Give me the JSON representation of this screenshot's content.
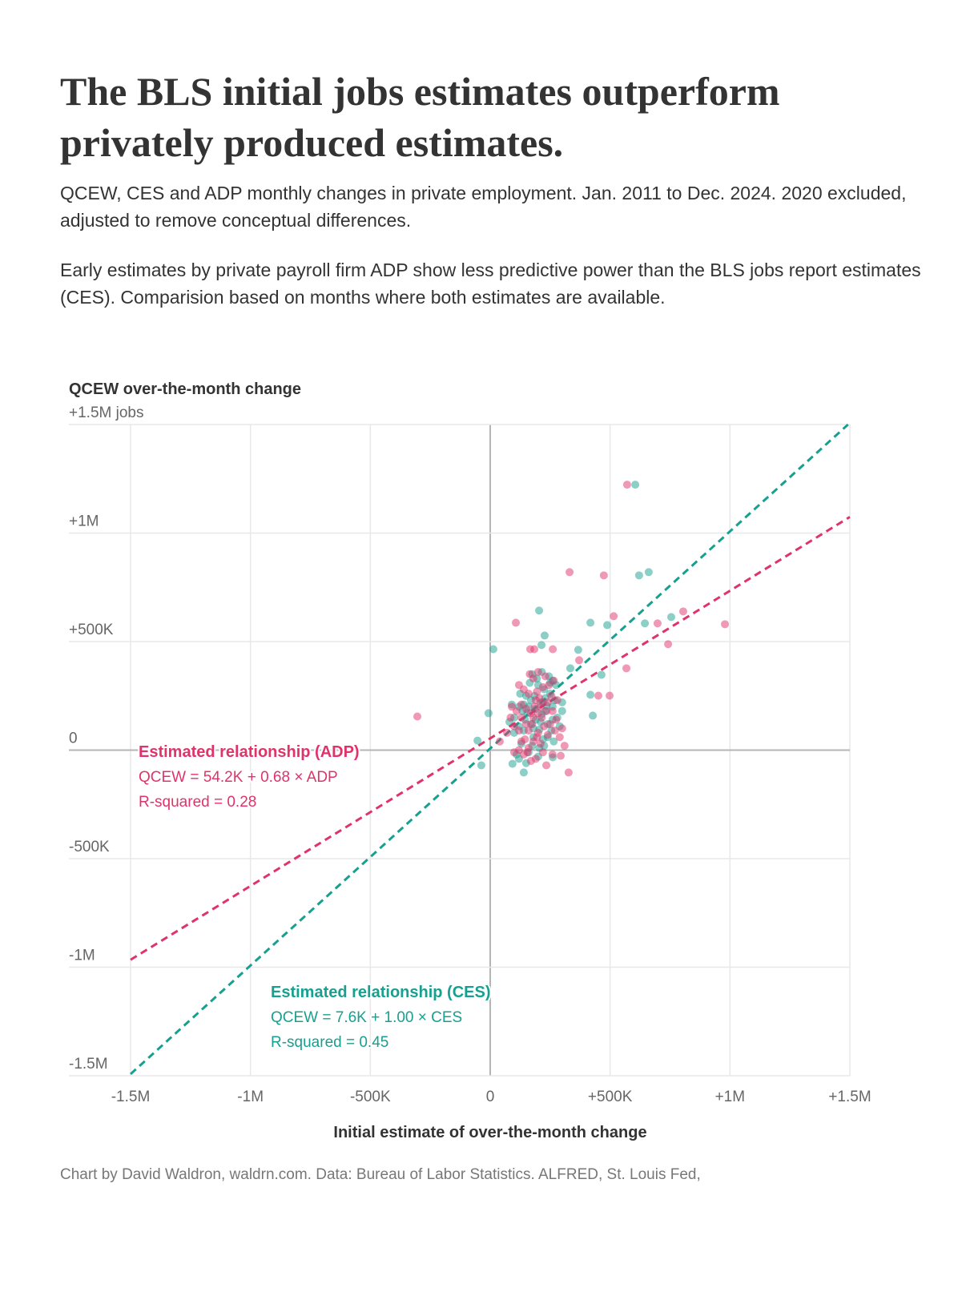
{
  "title": "The BLS initial jobs estimates outperform privately produced estimates.",
  "subtitle": "QCEW, CES and ADP monthly changes in private employment. Jan. 2011 to Dec. 2024. 2020 excluded, adjusted to remove conceptual differences.",
  "description": "Early estimates by private payroll firm ADP show less predictive power than the BLS jobs report estimates (CES). Comparision based on months where both estimates are available.",
  "footer": "Chart by David Waldron, waldrn.com. Data: Bureau of Labor Statistics. ALFRED, St. Louis Fed,",
  "colors": {
    "ces": "#17a08f",
    "adp": "#e0336b",
    "grid": "#e8e8e8",
    "axis": "#b5b5b5"
  },
  "chart_data": {
    "type": "scatter",
    "ylabel": "QCEW over-the-month change",
    "xlabel": "Initial estimate of over-the-month change",
    "units": "thousands of jobs",
    "xlim": [
      -1500,
      1500
    ],
    "ylim": [
      -1500,
      1500
    ],
    "grid": true,
    "xticks": [
      {
        "v": -1500,
        "label": "-1.5M"
      },
      {
        "v": -1000,
        "label": "-1M"
      },
      {
        "v": -500,
        "label": "-500K"
      },
      {
        "v": 0,
        "label": "0"
      },
      {
        "v": 500,
        "label": "+500K"
      },
      {
        "v": 1000,
        "label": "+1M"
      },
      {
        "v": 1500,
        "label": "+1.5M"
      }
    ],
    "yticks": [
      {
        "v": 1500,
        "label": "+1.5M jobs"
      },
      {
        "v": 1000,
        "label": "+1M"
      },
      {
        "v": 500,
        "label": "+500K"
      },
      {
        "v": 0,
        "label": "0"
      },
      {
        "v": -500,
        "label": "-500K"
      },
      {
        "v": -1000,
        "label": "-1M"
      },
      {
        "v": -1500,
        "label": "-1.5M"
      }
    ],
    "series": [
      {
        "name": "CES",
        "color": "#17a08f",
        "fit": {
          "intercept": 7.6,
          "slope": 1.0,
          "heading": "Estimated relationship (CES)",
          "equation": "QCEW = 7.6K + 1.00 × CES",
          "r2": "R-squared = 0.45"
        },
        "points": [
          [
            605,
            1223
          ],
          [
            621,
            805
          ],
          [
            661,
            820
          ],
          [
            418,
            587
          ],
          [
            488,
            576
          ],
          [
            645,
            584
          ],
          [
            755,
            613
          ],
          [
            13,
            465
          ],
          [
            204,
            643
          ],
          [
            227,
            528
          ],
          [
            214,
            484
          ],
          [
            367,
            462
          ],
          [
            334,
            377
          ],
          [
            464,
            347
          ],
          [
            418,
            255
          ],
          [
            428,
            159
          ],
          [
            -7,
            170
          ],
          [
            -53,
            44
          ],
          [
            -37,
            -70
          ],
          [
            93,
            -63
          ],
          [
            140,
            -103
          ],
          [
            261,
            -33
          ],
          [
            120,
            200
          ],
          [
            150,
            250
          ],
          [
            170,
            120
          ],
          [
            200,
            300
          ],
          [
            230,
            180
          ],
          [
            250,
            260
          ],
          [
            260,
            320
          ],
          [
            180,
            60
          ],
          [
            140,
            90
          ],
          [
            100,
            150
          ],
          [
            210,
            220
          ],
          [
            190,
            140
          ],
          [
            160,
            200
          ],
          [
            240,
            120
          ],
          [
            270,
            230
          ],
          [
            220,
            50
          ],
          [
            130,
            30
          ],
          [
            110,
            -20
          ],
          [
            150,
            -60
          ],
          [
            175,
            20
          ],
          [
            205,
            95
          ],
          [
            225,
            280
          ],
          [
            245,
            340
          ],
          [
            260,
            200
          ],
          [
            280,
            150
          ],
          [
            195,
            330
          ],
          [
            165,
            310
          ],
          [
            135,
            180
          ],
          [
            90,
            210
          ],
          [
            120,
            110
          ],
          [
            155,
            170
          ],
          [
            185,
            250
          ],
          [
            215,
            165
          ],
          [
            235,
            205
          ],
          [
            255,
            90
          ],
          [
            275,
            300
          ],
          [
            300,
            220
          ],
          [
            290,
            110
          ],
          [
            205,
            10
          ],
          [
            145,
            140
          ],
          [
            125,
            260
          ],
          [
            175,
            350
          ],
          [
            215,
            360
          ],
          [
            240,
            60
          ],
          [
            160,
            -10
          ],
          [
            100,
            80
          ],
          [
            80,
            130
          ],
          [
            190,
            190
          ],
          [
            230,
            240
          ],
          [
            260,
            140
          ],
          [
            140,
            210
          ],
          [
            210,
            130
          ],
          [
            180,
            100
          ],
          [
            250,
            310
          ],
          [
            300,
            180
          ],
          [
            120,
            -40
          ],
          [
            200,
            -30
          ],
          [
            170,
            230
          ],
          [
            225,
            20
          ],
          [
            265,
            40
          ]
        ]
      },
      {
        "name": "ADP",
        "color": "#e0336b",
        "fit": {
          "intercept": 54.2,
          "slope": 0.68,
          "heading": "Estimated relationship (ADP)",
          "equation": "QCEW = 54.2K + 0.68 × ADP",
          "r2": "R-squared = 0.28"
        },
        "points": [
          [
            571,
            1223
          ],
          [
            331,
            820
          ],
          [
            474,
            805
          ],
          [
            107,
            587
          ],
          [
            515,
            617
          ],
          [
            698,
            584
          ],
          [
            805,
            639
          ],
          [
            979,
            580
          ],
          [
            742,
            488
          ],
          [
            261,
            465
          ],
          [
            184,
            465
          ],
          [
            167,
            465
          ],
          [
            371,
            414
          ],
          [
            568,
            377
          ],
          [
            451,
            251
          ],
          [
            498,
            251
          ],
          [
            -304,
            155
          ],
          [
            327,
            -103
          ],
          [
            294,
            -26
          ],
          [
            234,
            -70
          ],
          [
            40,
            40
          ],
          [
            130,
            210
          ],
          [
            160,
            260
          ],
          [
            180,
            330
          ],
          [
            200,
            360
          ],
          [
            220,
            290
          ],
          [
            240,
            220
          ],
          [
            260,
            180
          ],
          [
            210,
            200
          ],
          [
            190,
            230
          ],
          [
            170,
            170
          ],
          [
            150,
            120
          ],
          [
            120,
            90
          ],
          [
            110,
            180
          ],
          [
            140,
            280
          ],
          [
            230,
            340
          ],
          [
            250,
            120
          ],
          [
            270,
            90
          ],
          [
            280,
            230
          ],
          [
            290,
            60
          ],
          [
            200,
            80
          ],
          [
            180,
            40
          ],
          [
            160,
            10
          ],
          [
            140,
            -20
          ],
          [
            130,
            40
          ],
          [
            100,
            110
          ],
          [
            90,
            200
          ],
          [
            85,
            150
          ],
          [
            120,
            300
          ],
          [
            165,
            350
          ],
          [
            195,
            270
          ],
          [
            215,
            150
          ],
          [
            235,
            180
          ],
          [
            255,
            250
          ],
          [
            275,
            140
          ],
          [
            210,
            30
          ],
          [
            190,
            -40
          ],
          [
            170,
            -50
          ],
          [
            220,
            -10
          ],
          [
            240,
            70
          ],
          [
            160,
            90
          ],
          [
            180,
            150
          ],
          [
            200,
            170
          ],
          [
            220,
            220
          ],
          [
            150,
            190
          ],
          [
            130,
            150
          ],
          [
            245,
            300
          ],
          [
            265,
            320
          ],
          [
            205,
            240
          ],
          [
            185,
            200
          ],
          [
            175,
            120
          ],
          [
            225,
            110
          ],
          [
            195,
            60
          ],
          [
            155,
            -10
          ],
          [
            145,
            50
          ],
          [
            300,
            100
          ],
          [
            310,
            20
          ],
          [
            260,
            -20
          ],
          [
            120,
            0
          ],
          [
            100,
            -10
          ],
          [
            70,
            80
          ]
        ]
      }
    ]
  }
}
